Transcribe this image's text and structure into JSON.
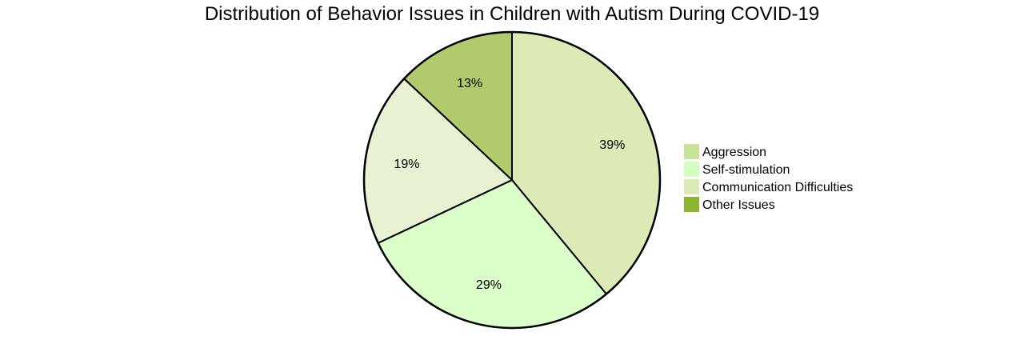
{
  "chart_data": {
    "type": "pie",
    "title": "Distribution of Behavior Issues in Children with Autism During COVID-19",
    "slices": [
      {
        "label": "Communication Difficulties",
        "value": 39,
        "display": "39%",
        "color": "#dcebb5"
      },
      {
        "label": "Self-stimulation",
        "value": 29,
        "display": "29%",
        "color": "#daffc9"
      },
      {
        "label": "Other Issues",
        "value": 19,
        "display": "19%",
        "color": "#e8f2d2"
      },
      {
        "label": "Aggression",
        "value": 13,
        "display": "13%",
        "color": "#b0ca6c"
      }
    ],
    "legend": {
      "placement": "right",
      "entries": [
        {
          "label": "Aggression",
          "color": "#c9e396"
        },
        {
          "label": "Self-stimulation",
          "color": "#d2ffbf"
        },
        {
          "label": "Communication Difficulties",
          "color": "#dcebb5"
        },
        {
          "label": "Other Issues",
          "color": "#8db332"
        }
      ]
    }
  }
}
